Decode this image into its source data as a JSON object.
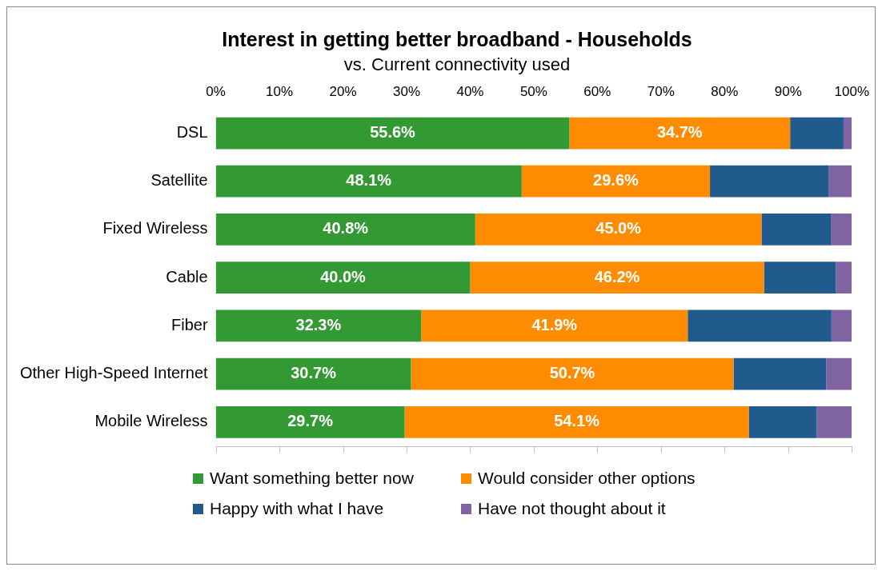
{
  "chart_data": {
    "type": "bar",
    "title": "Interest in getting better broadband - Households",
    "subtitle": "vs. Current connectivity used",
    "orientation": "horizontal",
    "stacked": true,
    "categories": [
      "DSL",
      "Satellite",
      "Fixed Wireless",
      "Cable",
      "Fiber",
      "Other High-Speed Internet",
      "Mobile Wireless"
    ],
    "series": [
      {
        "name": "Want something better now",
        "color": "#339933",
        "values": [
          55.6,
          48.1,
          40.8,
          40.0,
          32.3,
          30.7,
          29.7
        ],
        "value_labels": [
          "55.6%",
          "48.1%",
          "40.8%",
          "40.0%",
          "32.3%",
          "30.7%",
          "29.7%"
        ]
      },
      {
        "name": "Would consider other options",
        "color": "#ff8c00",
        "values": [
          34.7,
          29.6,
          45.0,
          46.2,
          41.9,
          50.7,
          54.1
        ],
        "value_labels": [
          "34.7%",
          "29.6%",
          "45.0%",
          "46.2%",
          "41.9%",
          "50.7%",
          "54.1%"
        ]
      },
      {
        "name": "Happy with what I have",
        "color": "#215a8c",
        "values": [
          8.4,
          18.7,
          10.9,
          11.3,
          22.6,
          14.6,
          10.7
        ]
      },
      {
        "name": "Have not thought about it",
        "color": "#8064a2",
        "values": [
          1.3,
          3.6,
          3.3,
          2.5,
          3.2,
          4.0,
          5.5
        ]
      }
    ],
    "xlim": [
      0,
      100
    ],
    "xticks": [
      {
        "value": 0,
        "label": "0%"
      },
      {
        "value": 10,
        "label": "10%"
      },
      {
        "value": 20,
        "label": "20%"
      },
      {
        "value": 30,
        "label": "30%"
      },
      {
        "value": 40,
        "label": "40%"
      },
      {
        "value": 50,
        "label": "50%"
      },
      {
        "value": 60,
        "label": "60%"
      },
      {
        "value": 70,
        "label": "70%"
      },
      {
        "value": 80,
        "label": "80%"
      },
      {
        "value": 90,
        "label": "90%"
      },
      {
        "value": 100,
        "label": "100%"
      }
    ],
    "grid": false,
    "legend": "bottom"
  }
}
